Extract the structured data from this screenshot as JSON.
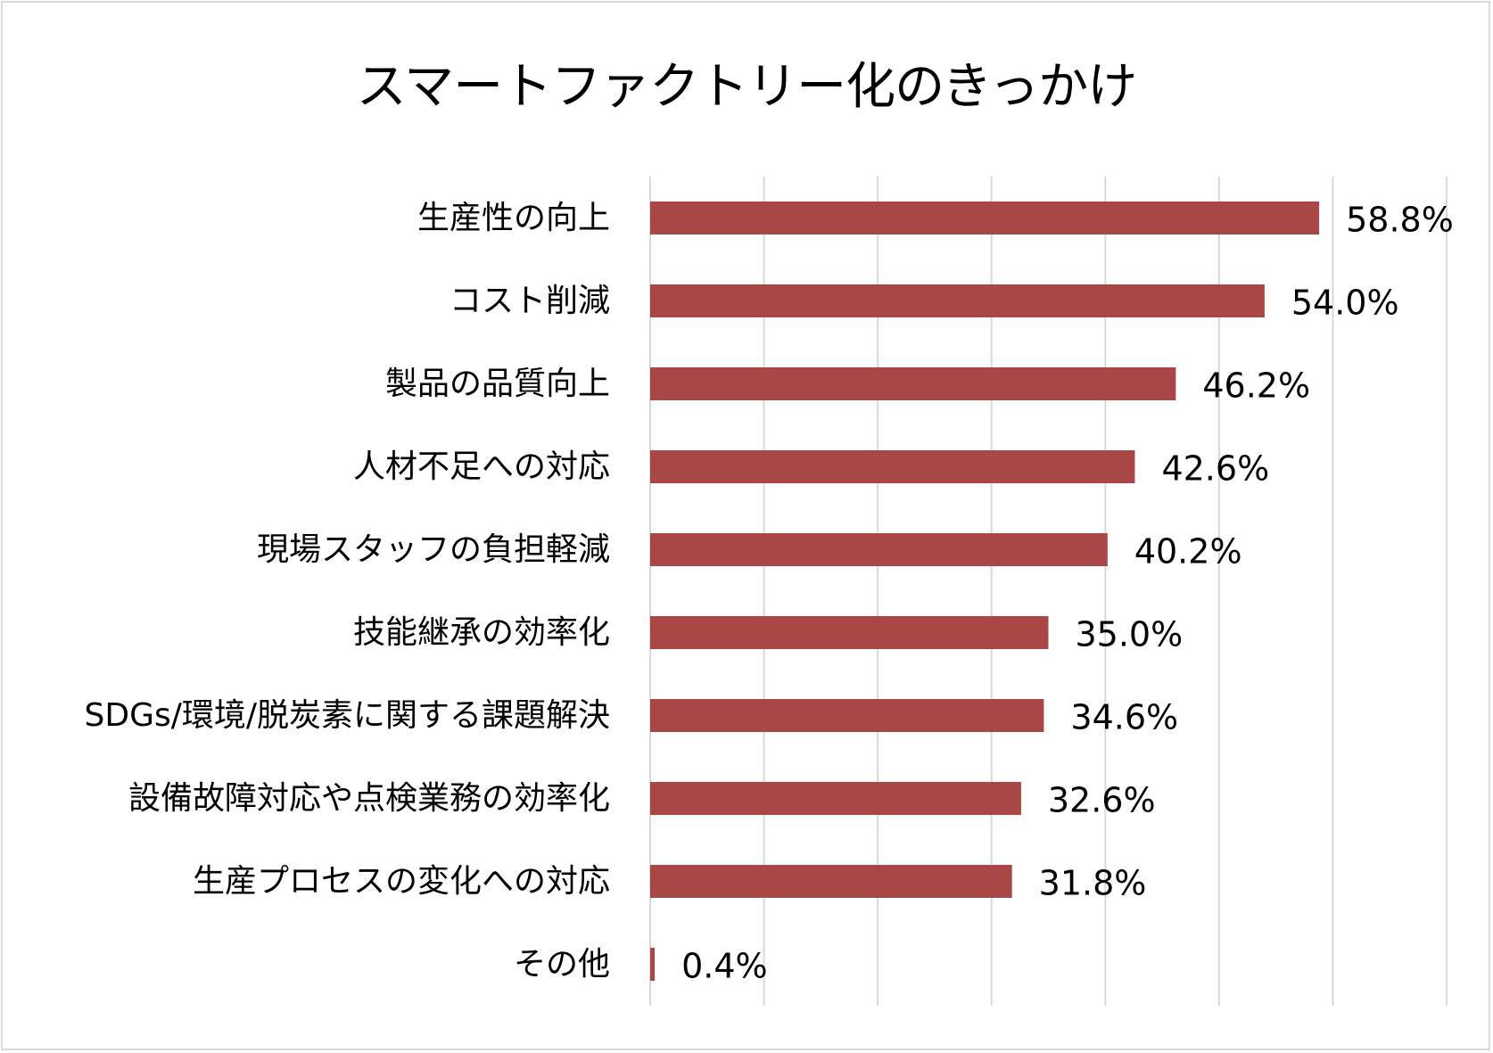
{
  "chart_data": {
    "type": "bar",
    "orientation": "horizontal",
    "title": "スマートファクトリー化のきっかけ",
    "xlabel": "",
    "ylabel": "",
    "xlim": [
      0,
      70
    ],
    "grid": true,
    "bar_color": "#a84745",
    "grid_color": "#d9d9d9",
    "categories": [
      "生産性の向上",
      "コスト削減",
      "製品の品質向上",
      "人材不足への対応",
      "現場スタッフの負担軽減",
      "技能継承の効率化",
      "SDGs/環境/脱炭素に関する課題解決",
      "設備故障対応や点検業務の効率化",
      "生産プロセスの変化への対応",
      "その他"
    ],
    "values": [
      58.8,
      54.0,
      46.2,
      42.6,
      40.2,
      35.0,
      34.6,
      32.6,
      31.8,
      0.4
    ],
    "value_labels": [
      "58.8%",
      "54.0%",
      "46.2%",
      "42.6%",
      "40.2%",
      "35.0%",
      "34.6%",
      "32.6%",
      "31.8%",
      "0.4%"
    ]
  }
}
